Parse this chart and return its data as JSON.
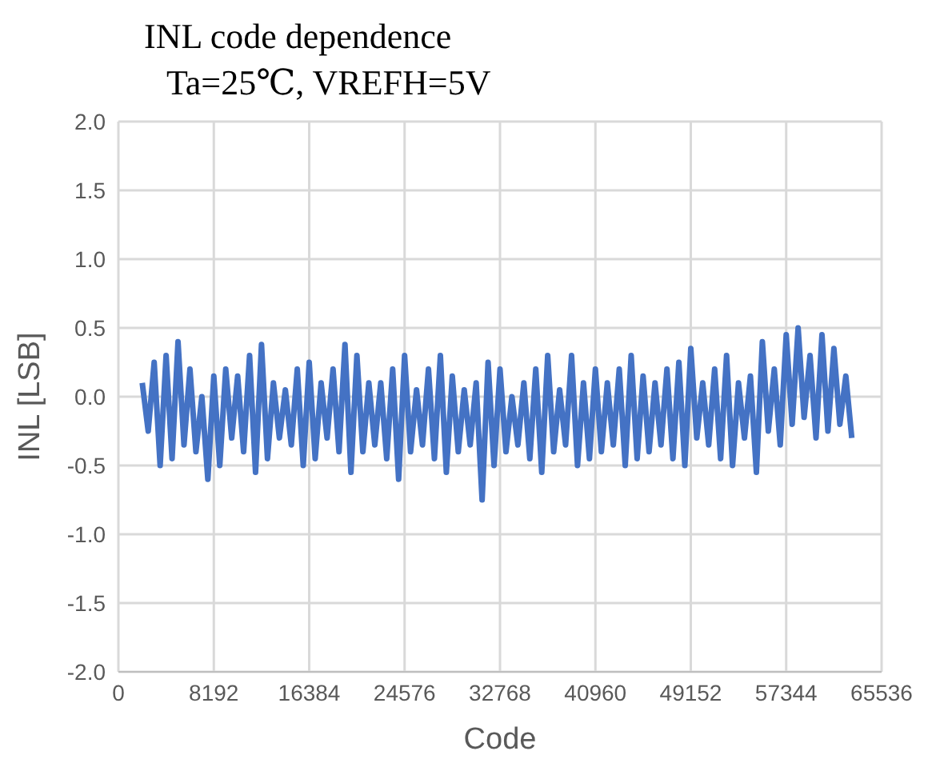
{
  "chart_data": {
    "type": "line",
    "title": "INL code dependence",
    "subtitle": "Ta=25℃, VREFH=5V",
    "xlabel": "Code",
    "ylabel": "INL [LSB]",
    "x": [
      2048,
      2560,
      3072,
      3584,
      4096,
      4608,
      5120,
      5632,
      6144,
      6656,
      7168,
      7680,
      8192,
      8704,
      9216,
      9728,
      10240,
      10752,
      11264,
      11776,
      12288,
      12800,
      13312,
      13824,
      14336,
      14848,
      15360,
      15872,
      16384,
      16896,
      17408,
      17920,
      18432,
      18944,
      19456,
      19968,
      20480,
      20992,
      21504,
      22016,
      22528,
      23040,
      23552,
      24064,
      24576,
      25088,
      25600,
      26112,
      26624,
      27136,
      27648,
      28160,
      28672,
      29184,
      29696,
      30208,
      30720,
      31232,
      31744,
      32256,
      32768,
      33280,
      33792,
      34304,
      34816,
      35328,
      35840,
      36352,
      36864,
      37376,
      37888,
      38400,
      38912,
      39424,
      39936,
      40448,
      40960,
      41472,
      41984,
      42496,
      43008,
      43520,
      44032,
      44544,
      45056,
      45568,
      46080,
      46592,
      47104,
      47616,
      48128,
      48640,
      49152,
      49664,
      50176,
      50688,
      51200,
      51712,
      52224,
      52736,
      53248,
      53760,
      54272,
      54784,
      55296,
      55808,
      56320,
      56832,
      57344,
      57856,
      58368,
      58880,
      59392,
      59904,
      60416,
      60928,
      61440,
      61952,
      62464,
      62976
    ],
    "series": [
      {
        "color": "#4472c4",
        "values": [
          0.1,
          -0.25,
          0.25,
          -0.5,
          0.3,
          -0.45,
          0.4,
          -0.35,
          0.2,
          -0.4,
          0.0,
          -0.6,
          0.15,
          -0.5,
          0.2,
          -0.3,
          0.15,
          -0.4,
          0.3,
          -0.55,
          0.38,
          -0.45,
          0.1,
          -0.3,
          0.05,
          -0.35,
          0.2,
          -0.5,
          0.25,
          -0.45,
          0.1,
          -0.3,
          0.2,
          -0.4,
          0.38,
          -0.55,
          0.3,
          -0.4,
          0.1,
          -0.35,
          0.1,
          -0.45,
          0.2,
          -0.6,
          0.3,
          -0.4,
          0.05,
          -0.35,
          0.2,
          -0.45,
          0.3,
          -0.55,
          0.15,
          -0.4,
          0.05,
          -0.35,
          0.1,
          -0.75,
          0.25,
          -0.5,
          0.2,
          -0.4,
          0.0,
          -0.35,
          0.1,
          -0.45,
          0.2,
          -0.55,
          0.3,
          -0.4,
          0.05,
          -0.35,
          0.3,
          -0.5,
          0.1,
          -0.45,
          0.2,
          -0.4,
          0.1,
          -0.35,
          0.2,
          -0.5,
          0.3,
          -0.45,
          0.15,
          -0.4,
          0.1,
          -0.35,
          0.2,
          -0.45,
          0.25,
          -0.5,
          0.35,
          -0.3,
          0.1,
          -0.35,
          0.2,
          -0.45,
          0.3,
          -0.5,
          0.1,
          -0.3,
          0.15,
          -0.55,
          0.4,
          -0.25,
          0.2,
          -0.35,
          0.45,
          -0.2,
          0.5,
          -0.15,
          0.3,
          -0.3,
          0.45,
          -0.25,
          0.35,
          -0.2,
          0.15,
          -0.3
        ]
      }
    ],
    "xlim": [
      0,
      65536
    ],
    "xticks": [
      0,
      8192,
      16384,
      24576,
      32768,
      40960,
      49152,
      57344,
      65536
    ],
    "ylim": [
      -2,
      2
    ],
    "yticks": [
      {
        "value": -2,
        "label": "-2.0"
      },
      {
        "value": -1.5,
        "label": "-1.5"
      },
      {
        "value": -1,
        "label": "-1.0"
      },
      {
        "value": -0.5,
        "label": "-0.5"
      },
      {
        "value": 0,
        "label": "0.0"
      },
      {
        "value": 0.5,
        "label": "0.5"
      },
      {
        "value": 1,
        "label": "1.0"
      },
      {
        "value": 1.5,
        "label": "1.5"
      },
      {
        "value": 2,
        "label": "2.0"
      }
    ],
    "grid": true,
    "marker": "none",
    "line_style": "solid"
  }
}
